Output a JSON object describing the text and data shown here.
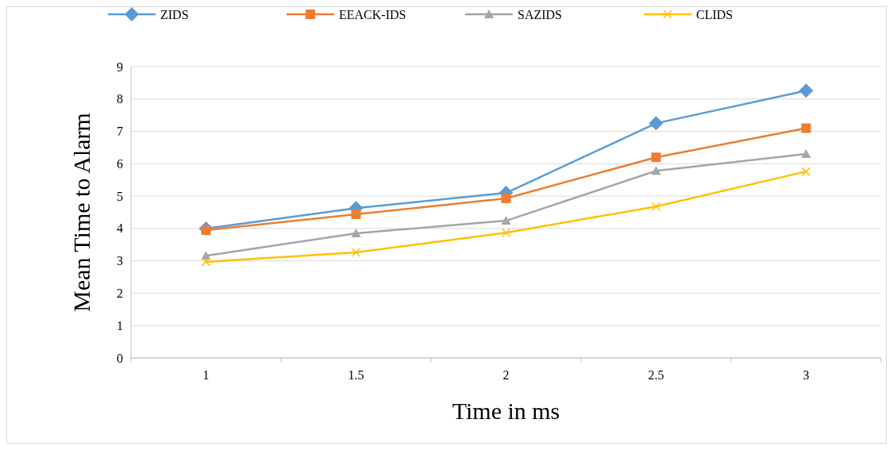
{
  "chart_data": {
    "type": "line",
    "xlabel": "Time in ms",
    "ylabel": "Mean Time to Alarm",
    "categories": [
      "1",
      "1.5",
      "2",
      "2.5",
      "3"
    ],
    "ylim": [
      0,
      9
    ],
    "yticks": [
      0,
      1,
      2,
      3,
      4,
      5,
      6,
      7,
      8,
      9
    ],
    "grid": "y",
    "legend": "top",
    "series": [
      {
        "name": "ZIDS",
        "color": "#5b9bd5",
        "marker": "diamond",
        "values": [
          4.0,
          4.63,
          5.1,
          7.25,
          8.26
        ]
      },
      {
        "name": "EEACK-IDS",
        "color": "#ed7d31",
        "marker": "square",
        "values": [
          3.95,
          4.44,
          4.93,
          6.2,
          7.1
        ]
      },
      {
        "name": "SAZIDS",
        "color": "#a5a5a5",
        "marker": "triangle",
        "values": [
          3.16,
          3.85,
          4.24,
          5.78,
          6.3
        ]
      },
      {
        "name": "CLIDS",
        "color": "#ffc000",
        "marker": "cross",
        "values": [
          2.97,
          3.26,
          3.87,
          4.68,
          5.76
        ]
      }
    ]
  }
}
